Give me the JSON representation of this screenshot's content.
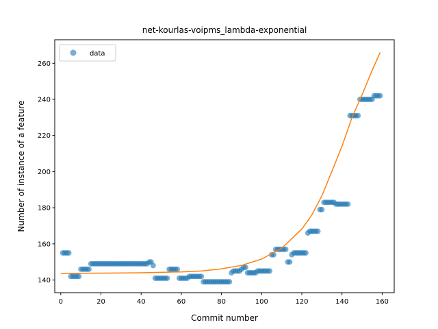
{
  "chart_data": {
    "type": "scatter",
    "title": "net-kourlas-voipms_lambda-exponential",
    "xlabel": "Commit number",
    "ylabel": "Number of instance of a feature",
    "xlim": [
      -3,
      166
    ],
    "ylim": [
      133,
      273
    ],
    "xticks": [
      0,
      20,
      40,
      60,
      80,
      100,
      120,
      140,
      160
    ],
    "yticks": [
      140,
      160,
      180,
      200,
      220,
      240,
      260
    ],
    "grid": false,
    "legend": {
      "placement": "top-left",
      "entries": [
        "data"
      ]
    },
    "colors": {
      "scatter": "#1f77b4",
      "fit": "#ff7f0e"
    },
    "series": [
      {
        "name": "data",
        "kind": "scatter",
        "points": [
          [
            1,
            155
          ],
          [
            2,
            155
          ],
          [
            3,
            155
          ],
          [
            4,
            155
          ],
          [
            5,
            142
          ],
          [
            6,
            142
          ],
          [
            7,
            142
          ],
          [
            8,
            142
          ],
          [
            9,
            142
          ],
          [
            10,
            146
          ],
          [
            11,
            146
          ],
          [
            12,
            146
          ],
          [
            13,
            146
          ],
          [
            14,
            146
          ],
          [
            15,
            149
          ],
          [
            16,
            149
          ],
          [
            17,
            149
          ],
          [
            18,
            149
          ],
          [
            19,
            149
          ],
          [
            20,
            149
          ],
          [
            21,
            149
          ],
          [
            22,
            149
          ],
          [
            23,
            149
          ],
          [
            24,
            149
          ],
          [
            25,
            149
          ],
          [
            26,
            149
          ],
          [
            27,
            149
          ],
          [
            28,
            149
          ],
          [
            29,
            149
          ],
          [
            30,
            149
          ],
          [
            31,
            149
          ],
          [
            32,
            149
          ],
          [
            33,
            149
          ],
          [
            34,
            149
          ],
          [
            35,
            149
          ],
          [
            36,
            149
          ],
          [
            37,
            149
          ],
          [
            38,
            149
          ],
          [
            39,
            149
          ],
          [
            40,
            149
          ],
          [
            41,
            149
          ],
          [
            42,
            149
          ],
          [
            43,
            149
          ],
          [
            44,
            150
          ],
          [
            45,
            150
          ],
          [
            46,
            148
          ],
          [
            47,
            141
          ],
          [
            48,
            141
          ],
          [
            49,
            141
          ],
          [
            50,
            141
          ],
          [
            51,
            141
          ],
          [
            52,
            141
          ],
          [
            53,
            141
          ],
          [
            54,
            146
          ],
          [
            55,
            146
          ],
          [
            56,
            146
          ],
          [
            57,
            146
          ],
          [
            58,
            146
          ],
          [
            59,
            141
          ],
          [
            60,
            141
          ],
          [
            61,
            141
          ],
          [
            62,
            141
          ],
          [
            63,
            141
          ],
          [
            64,
            142
          ],
          [
            65,
            142
          ],
          [
            66,
            142
          ],
          [
            67,
            142
          ],
          [
            68,
            142
          ],
          [
            69,
            142
          ],
          [
            70,
            142
          ],
          [
            71,
            139
          ],
          [
            72,
            139
          ],
          [
            73,
            139
          ],
          [
            74,
            139
          ],
          [
            75,
            139
          ],
          [
            76,
            139
          ],
          [
            77,
            139
          ],
          [
            78,
            139
          ],
          [
            79,
            139
          ],
          [
            80,
            139
          ],
          [
            81,
            139
          ],
          [
            82,
            139
          ],
          [
            83,
            139
          ],
          [
            84,
            139
          ],
          [
            85,
            144
          ],
          [
            86,
            145
          ],
          [
            87,
            145
          ],
          [
            88,
            145
          ],
          [
            89,
            145
          ],
          [
            90,
            146
          ],
          [
            91,
            147
          ],
          [
            92,
            147
          ],
          [
            93,
            144
          ],
          [
            94,
            144
          ],
          [
            95,
            144
          ],
          [
            96,
            144
          ],
          [
            97,
            144
          ],
          [
            98,
            145
          ],
          [
            99,
            145
          ],
          [
            100,
            145
          ],
          [
            101,
            145
          ],
          [
            102,
            145
          ],
          [
            103,
            145
          ],
          [
            104,
            145
          ],
          [
            105,
            154
          ],
          [
            106,
            154
          ],
          [
            107,
            157
          ],
          [
            108,
            157
          ],
          [
            109,
            157
          ],
          [
            110,
            157
          ],
          [
            111,
            157
          ],
          [
            112,
            157
          ],
          [
            113,
            150
          ],
          [
            114,
            150
          ],
          [
            115,
            154
          ],
          [
            116,
            155
          ],
          [
            117,
            155
          ],
          [
            118,
            155
          ],
          [
            119,
            155
          ],
          [
            120,
            155
          ],
          [
            121,
            155
          ],
          [
            122,
            155
          ],
          [
            123,
            166
          ],
          [
            124,
            167
          ],
          [
            125,
            167
          ],
          [
            126,
            167
          ],
          [
            127,
            167
          ],
          [
            128,
            167
          ],
          [
            129,
            179
          ],
          [
            130,
            179
          ],
          [
            131,
            183
          ],
          [
            132,
            183
          ],
          [
            133,
            183
          ],
          [
            134,
            183
          ],
          [
            135,
            183
          ],
          [
            136,
            183
          ],
          [
            137,
            182
          ],
          [
            138,
            182
          ],
          [
            139,
            182
          ],
          [
            140,
            182
          ],
          [
            141,
            182
          ],
          [
            142,
            182
          ],
          [
            143,
            182
          ],
          [
            144,
            231
          ],
          [
            145,
            231
          ],
          [
            146,
            231
          ],
          [
            147,
            231
          ],
          [
            148,
            231
          ],
          [
            149,
            240
          ],
          [
            150,
            240
          ],
          [
            151,
            240
          ],
          [
            152,
            240
          ],
          [
            153,
            240
          ],
          [
            154,
            240
          ],
          [
            155,
            240
          ],
          [
            156,
            242
          ],
          [
            157,
            242
          ],
          [
            158,
            242
          ],
          [
            159,
            242
          ]
        ]
      },
      {
        "kind": "line",
        "points": [
          [
            0,
            143.7
          ],
          [
            20,
            143.8
          ],
          [
            40,
            144.0
          ],
          [
            60,
            144.5
          ],
          [
            70,
            145.0
          ],
          [
            80,
            146.2
          ],
          [
            90,
            148.1
          ],
          [
            100,
            151.6
          ],
          [
            110,
            157.6
          ],
          [
            120,
            168.2
          ],
          [
            125,
            176.0
          ],
          [
            130,
            186.6
          ],
          [
            135,
            200.2
          ],
          [
            140,
            214.0
          ],
          [
            145,
            230.0
          ],
          [
            150,
            242.5
          ],
          [
            155,
            256.0
          ],
          [
            159,
            266.0
          ]
        ]
      }
    ]
  }
}
